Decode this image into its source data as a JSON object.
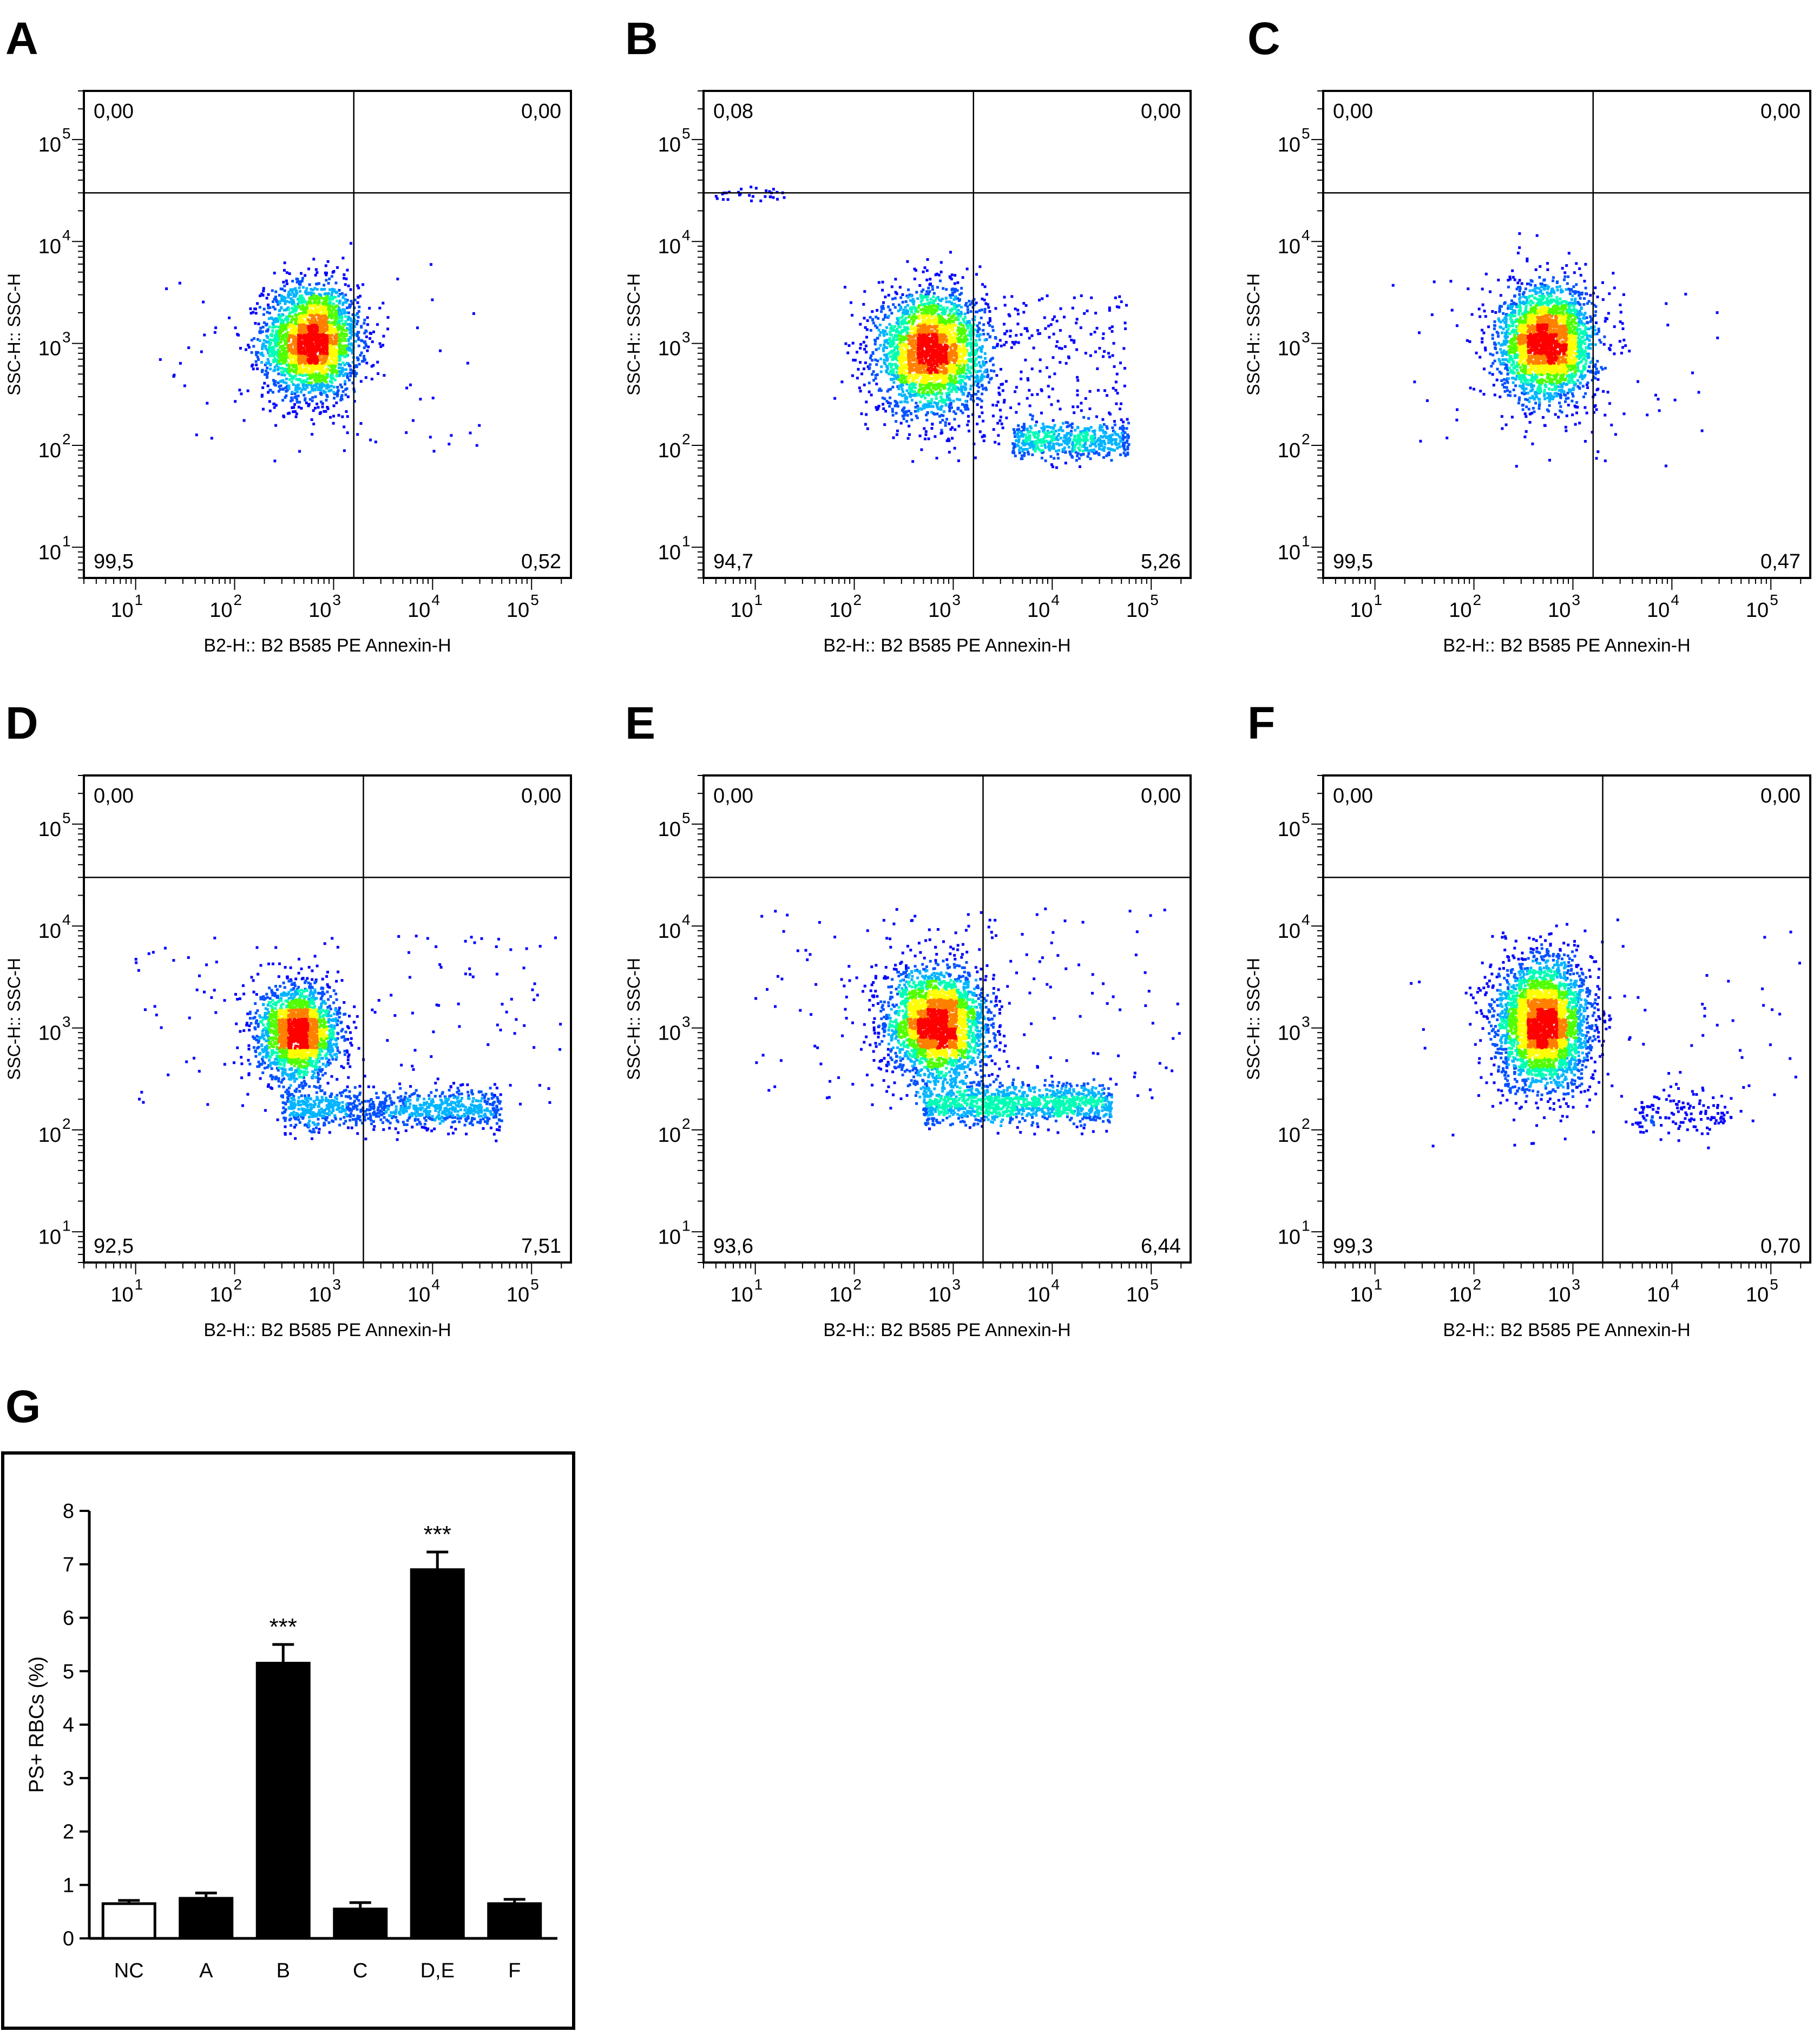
{
  "colors": {
    "density_scale": [
      "#0000ff",
      "#0050ff",
      "#00b4ff",
      "#00ffb4",
      "#50ff00",
      "#ffff00",
      "#ff8000",
      "#ff0000"
    ],
    "bar_fill": "#000000",
    "control_fill": "#ffffff"
  },
  "chart_data": [
    {
      "id": "A",
      "type": "scatter",
      "panel_letter": "A",
      "xlabel": "B2-H:: B2 B585 PE Annexin-H",
      "ylabel": "SSC-H:: SSC-H",
      "xscale": "log",
      "yscale": "log",
      "xlim": [
        3,
        250000
      ],
      "ylim": [
        5,
        300000
      ],
      "x_ticks": [
        {
          "base": "10",
          "exp": "1",
          "value": 10
        },
        {
          "base": "10",
          "exp": "2",
          "value": 100
        },
        {
          "base": "10",
          "exp": "3",
          "value": 1000
        },
        {
          "base": "10",
          "exp": "4",
          "value": 10000
        },
        {
          "base": "10",
          "exp": "5",
          "value": 100000
        }
      ],
      "y_ticks": [
        {
          "base": "10",
          "exp": "1",
          "value": 10
        },
        {
          "base": "10",
          "exp": "2",
          "value": 100
        },
        {
          "base": "10",
          "exp": "3",
          "value": 1000
        },
        {
          "base": "10",
          "exp": "4",
          "value": 10000
        },
        {
          "base": "10",
          "exp": "5",
          "value": 100000
        }
      ],
      "gate": {
        "x": 1600,
        "y": 30000
      },
      "quadrants": {
        "upper_left": "0,00",
        "upper_right": "0,00",
        "lower_left": "99,5",
        "lower_right": "0,52"
      },
      "populations": [
        {
          "cx": 600,
          "cy": 1050,
          "sx": 0.24,
          "sy": 0.28,
          "n": 2600,
          "shape": "gaussian"
        },
        {
          "xmin": 15,
          "xmax": 30000,
          "ymin": 80,
          "ymax": 6000,
          "n": 70,
          "shape": "scatter"
        }
      ]
    },
    {
      "id": "B",
      "type": "scatter",
      "panel_letter": "B",
      "xlabel": "B2-H:: B2 B585 PE Annexin-H",
      "ylabel": "SSC-H:: SSC-H",
      "xscale": "log",
      "yscale": "log",
      "xlim": [
        3,
        250000
      ],
      "ylim": [
        5,
        300000
      ],
      "x_ticks": [
        {
          "base": "10",
          "exp": "1",
          "value": 10
        },
        {
          "base": "10",
          "exp": "2",
          "value": 100
        },
        {
          "base": "10",
          "exp": "3",
          "value": 1000
        },
        {
          "base": "10",
          "exp": "4",
          "value": 10000
        },
        {
          "base": "10",
          "exp": "5",
          "value": 100000
        }
      ],
      "y_ticks": [
        {
          "base": "10",
          "exp": "1",
          "value": 10
        },
        {
          "base": "10",
          "exp": "2",
          "value": 100
        },
        {
          "base": "10",
          "exp": "3",
          "value": 1000
        },
        {
          "base": "10",
          "exp": "4",
          "value": 10000
        },
        {
          "base": "10",
          "exp": "5",
          "value": 100000
        }
      ],
      "gate": {
        "x": 1600,
        "y": 30000
      },
      "quadrants": {
        "upper_left": "0,08",
        "upper_right": "0,00",
        "lower_left": "94,7",
        "lower_right": "5,26"
      },
      "populations": [
        {
          "cx": 600,
          "cy": 800,
          "sx": 0.27,
          "sy": 0.3,
          "n": 2600,
          "shape": "gaussian"
        },
        {
          "xmin": 4000,
          "xmax": 60000,
          "ycenter": 110,
          "sy": 0.09,
          "n": 500,
          "shape": "band"
        },
        {
          "xmin": 1000,
          "xmax": 60000,
          "ymin": 100,
          "ymax": 3000,
          "n": 260,
          "shape": "scatter"
        },
        {
          "xmin": 4,
          "xmax": 20,
          "ymin": 25000,
          "ymax": 35000,
          "n": 30,
          "shape": "scatter"
        }
      ]
    },
    {
      "id": "C",
      "type": "scatter",
      "panel_letter": "C",
      "xlabel": "B2-H:: B2 B585 PE Annexin-H",
      "ylabel": "SSC-H:: SSC-H",
      "xscale": "log",
      "yscale": "log",
      "xlim": [
        3,
        250000
      ],
      "ylim": [
        5,
        300000
      ],
      "x_ticks": [
        {
          "base": "10",
          "exp": "1",
          "value": 10
        },
        {
          "base": "10",
          "exp": "2",
          "value": 100
        },
        {
          "base": "10",
          "exp": "3",
          "value": 1000
        },
        {
          "base": "10",
          "exp": "4",
          "value": 10000
        },
        {
          "base": "10",
          "exp": "5",
          "value": 100000
        }
      ],
      "y_ticks": [
        {
          "base": "10",
          "exp": "1",
          "value": 10
        },
        {
          "base": "10",
          "exp": "2",
          "value": 100
        },
        {
          "base": "10",
          "exp": "3",
          "value": 1000
        },
        {
          "base": "10",
          "exp": "4",
          "value": 10000
        },
        {
          "base": "10",
          "exp": "5",
          "value": 100000
        }
      ],
      "gate": {
        "x": 1600,
        "y": 30000
      },
      "quadrants": {
        "upper_left": "0,00",
        "upper_right": "0,00",
        "lower_left": "99,5",
        "lower_right": "0,47"
      },
      "populations": [
        {
          "cx": 550,
          "cy": 1000,
          "sx": 0.24,
          "sy": 0.28,
          "n": 2600,
          "shape": "gaussian"
        },
        {
          "xmin": 15,
          "xmax": 30000,
          "ymin": 60,
          "ymax": 5000,
          "n": 70,
          "shape": "scatter"
        }
      ]
    },
    {
      "id": "D",
      "type": "scatter",
      "panel_letter": "D",
      "xlabel": "B2-H:: B2 B585 PE Annexin-H",
      "ylabel": "SSC-H:: SSC-H",
      "xscale": "log",
      "yscale": "log",
      "xlim": [
        3,
        250000
      ],
      "ylim": [
        5,
        300000
      ],
      "x_ticks": [
        {
          "base": "10",
          "exp": "1",
          "value": 10
        },
        {
          "base": "10",
          "exp": "2",
          "value": 100
        },
        {
          "base": "10",
          "exp": "3",
          "value": 1000
        },
        {
          "base": "10",
          "exp": "4",
          "value": 10000
        },
        {
          "base": "10",
          "exp": "5",
          "value": 100000
        }
      ],
      "y_ticks": [
        {
          "base": "10",
          "exp": "1",
          "value": 10
        },
        {
          "base": "10",
          "exp": "2",
          "value": 100
        },
        {
          "base": "10",
          "exp": "3",
          "value": 1000
        },
        {
          "base": "10",
          "exp": "4",
          "value": 10000
        },
        {
          "base": "10",
          "exp": "5",
          "value": 100000
        }
      ],
      "gate": {
        "x": 2000,
        "y": 30000
      },
      "quadrants": {
        "upper_left": "0,00",
        "upper_right": "0,00",
        "lower_left": "92,5",
        "lower_right": "7,51"
      },
      "populations": [
        {
          "cx": 450,
          "cy": 900,
          "sx": 0.2,
          "sy": 0.23,
          "n": 2000,
          "shape": "gaussian"
        },
        {
          "xmin": 300,
          "xmax": 50000,
          "ycenter": 160,
          "sy": 0.1,
          "n": 900,
          "shape": "band"
        },
        {
          "xmin": 10,
          "xmax": 200000,
          "ymin": 150,
          "ymax": 8000,
          "n": 140,
          "shape": "scatter"
        }
      ]
    },
    {
      "id": "E",
      "type": "scatter",
      "panel_letter": "E",
      "xlabel": "B2-H:: B2 B585 PE Annexin-H",
      "ylabel": "SSC-H:: SSC-H",
      "xscale": "log",
      "yscale": "log",
      "xlim": [
        3,
        250000
      ],
      "ylim": [
        5,
        300000
      ],
      "x_ticks": [
        {
          "base": "10",
          "exp": "1",
          "value": 10
        },
        {
          "base": "10",
          "exp": "2",
          "value": 100
        },
        {
          "base": "10",
          "exp": "3",
          "value": 1000
        },
        {
          "base": "10",
          "exp": "4",
          "value": 10000
        },
        {
          "base": "10",
          "exp": "5",
          "value": 100000
        }
      ],
      "y_ticks": [
        {
          "base": "10",
          "exp": "1",
          "value": 10
        },
        {
          "base": "10",
          "exp": "2",
          "value": 100
        },
        {
          "base": "10",
          "exp": "3",
          "value": 1000
        },
        {
          "base": "10",
          "exp": "4",
          "value": 10000
        },
        {
          "base": "10",
          "exp": "5",
          "value": 100000
        }
      ],
      "gate": {
        "x": 2000,
        "y": 30000
      },
      "quadrants": {
        "upper_left": "0,00",
        "upper_right": "0,00",
        "lower_left": "93,6",
        "lower_right": "6,44"
      },
      "populations": [
        {
          "cx": 700,
          "cy": 1050,
          "sx": 0.26,
          "sy": 0.28,
          "n": 2600,
          "shape": "gaussian"
        },
        {
          "xmin": 500,
          "xmax": 40000,
          "ycenter": 180,
          "sy": 0.1,
          "n": 1100,
          "shape": "band"
        },
        {
          "xmin": 10,
          "xmax": 200000,
          "ymin": 200,
          "ymax": 15000,
          "n": 160,
          "shape": "scatter"
        }
      ]
    },
    {
      "id": "F",
      "type": "scatter",
      "panel_letter": "F",
      "xlabel": "B2-H:: B2 B585 PE Annexin-H",
      "ylabel": "SSC-H:: SSC-H",
      "xscale": "log",
      "yscale": "log",
      "xlim": [
        3,
        250000
      ],
      "ylim": [
        5,
        300000
      ],
      "x_ticks": [
        {
          "base": "10",
          "exp": "1",
          "value": 10
        },
        {
          "base": "10",
          "exp": "2",
          "value": 100
        },
        {
          "base": "10",
          "exp": "3",
          "value": 1000
        },
        {
          "base": "10",
          "exp": "4",
          "value": 10000
        },
        {
          "base": "10",
          "exp": "5",
          "value": 100000
        }
      ],
      "y_ticks": [
        {
          "base": "10",
          "exp": "1",
          "value": 10
        },
        {
          "base": "10",
          "exp": "2",
          "value": 100
        },
        {
          "base": "10",
          "exp": "3",
          "value": 1000
        },
        {
          "base": "10",
          "exp": "4",
          "value": 10000
        },
        {
          "base": "10",
          "exp": "5",
          "value": 100000
        }
      ],
      "gate": {
        "x": 2000,
        "y": 30000
      },
      "quadrants": {
        "upper_left": "0,00",
        "upper_right": "0,00",
        "lower_left": "99,3",
        "lower_right": "0,70"
      },
      "populations": [
        {
          "cx": 500,
          "cy": 1100,
          "sx": 0.24,
          "sy": 0.32,
          "n": 3000,
          "shape": "gaussian"
        },
        {
          "xmin": 4000,
          "xmax": 40000,
          "ycenter": 150,
          "sy": 0.1,
          "n": 130,
          "shape": "band"
        },
        {
          "xmin": 20,
          "xmax": 200000,
          "ymin": 60,
          "ymax": 10000,
          "n": 70,
          "shape": "scatter"
        }
      ]
    },
    {
      "id": "G",
      "type": "bar",
      "panel_letter": "G",
      "ylabel": "PS+ RBCs (%)",
      "ylim": [
        0,
        8
      ],
      "y_ticks": [
        0,
        1,
        2,
        3,
        4,
        5,
        6,
        7,
        8
      ],
      "categories": [
        "NC",
        "A",
        "B",
        "C",
        "D,E",
        "F"
      ],
      "values": [
        0.65,
        0.75,
        5.15,
        0.55,
        6.9,
        0.65
      ],
      "errors": [
        0.06,
        0.1,
        0.35,
        0.12,
        0.33,
        0.08
      ],
      "control_index": 0,
      "significance": [
        "",
        "",
        "***",
        "",
        "***",
        ""
      ]
    }
  ]
}
